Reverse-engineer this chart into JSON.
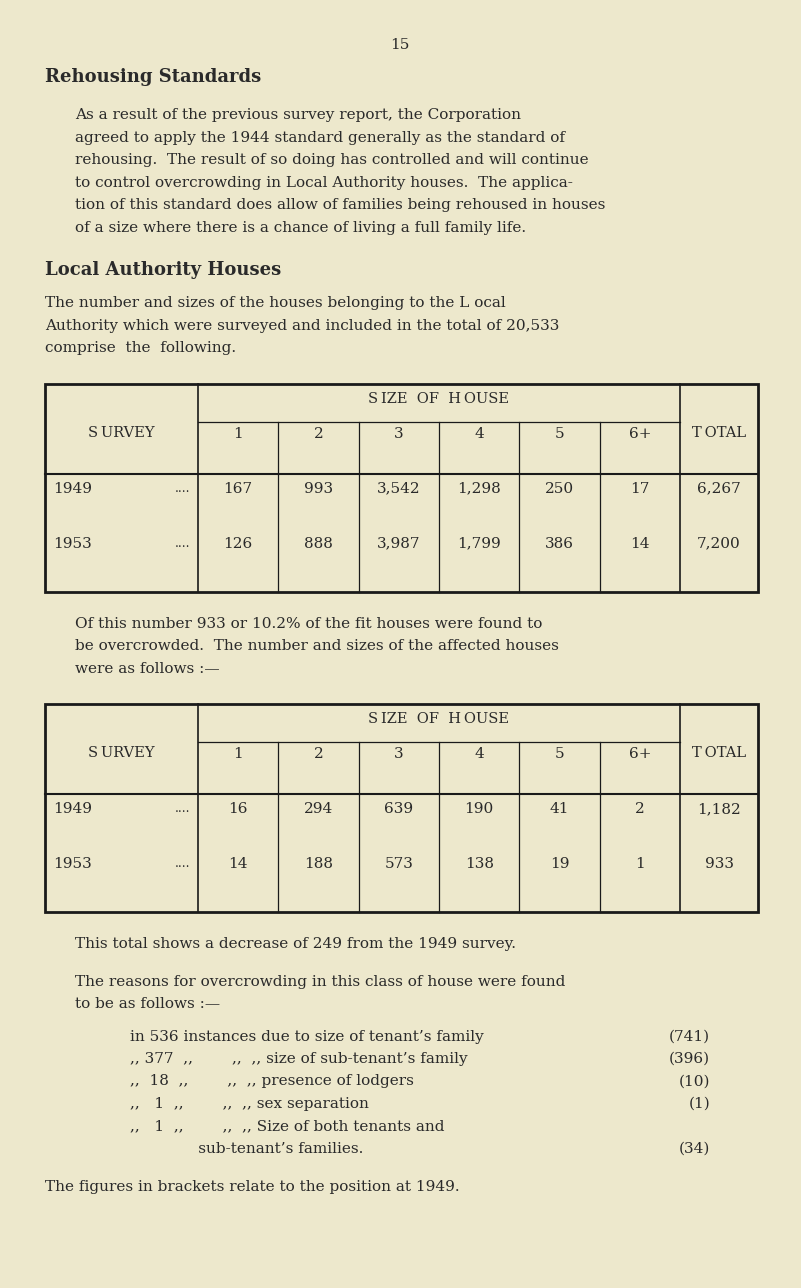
{
  "bg_color": "#ede8cc",
  "text_color": "#2a2a2a",
  "page_number": "15",
  "title1": "Rehousing Standards",
  "title2": "Local Authority Houses",
  "para1_lines": [
    "As a result of the previous survey report, the Corporation",
    "agreed to apply the 1944 standard generally as the standard of",
    "rehousing.  The result of so doing has controlled and will continue",
    "to control overcrowding in Local Authority houses.  The applica-",
    "tion of this standard does allow of families being rehoused in houses",
    "of a size where there is a chance of living a full family life."
  ],
  "para2_lines": [
    "The number and sizes of the houses belonging to the L ocal",
    "Authority which were surveyed and included in the total of 20,533",
    "comprise  the  following."
  ],
  "table1_data": [
    [
      "1949",
      "....",
      "167",
      "993",
      "3,542",
      "1,298",
      "250",
      "17",
      "6,267"
    ],
    [
      "1953",
      "....",
      "126",
      "888",
      "3,987",
      "1,799",
      "386",
      "14",
      "7,200"
    ]
  ],
  "para3_lines": [
    "Of this number 933 or 10.2% of the fit houses were found to",
    "be overcrowded.  The number and sizes of the affected houses",
    "were as follows :—"
  ],
  "table2_data": [
    [
      "1949",
      "....",
      "16",
      "294",
      "639",
      "190",
      "41",
      "2",
      "1,182"
    ],
    [
      "1953",
      "....",
      "14",
      "188",
      "573",
      "138",
      "19",
      "1",
      "933"
    ]
  ],
  "para4": "This total shows a decrease of 249 from the 1949 survey.",
  "para5_lines": [
    "The reasons for overcrowding in this class of house were found",
    "to be as follows :—"
  ],
  "reason_lines": [
    [
      "in 536 instances due to size of tenant’s family",
      "(741)"
    ],
    [
      ",, 377  ,,        ,,  ,, size of sub-tenant’s family",
      "(396)"
    ],
    [
      ",,  18  ,,        ,,  ,, presence of lodgers",
      "(10)"
    ],
    [
      ",,   1  ,,        ,,  ,, sex separation",
      "(1)"
    ],
    [
      ",,   1  ,,        ,,  ,, Size of both tenants and",
      ""
    ],
    [
      "              sub-tenant’s families.",
      "(34)"
    ]
  ],
  "para6": "The figures in brackets relate to the position at 1949.",
  "col_labels": [
    "1",
    "2",
    "3",
    "4",
    "5",
    "6+"
  ]
}
